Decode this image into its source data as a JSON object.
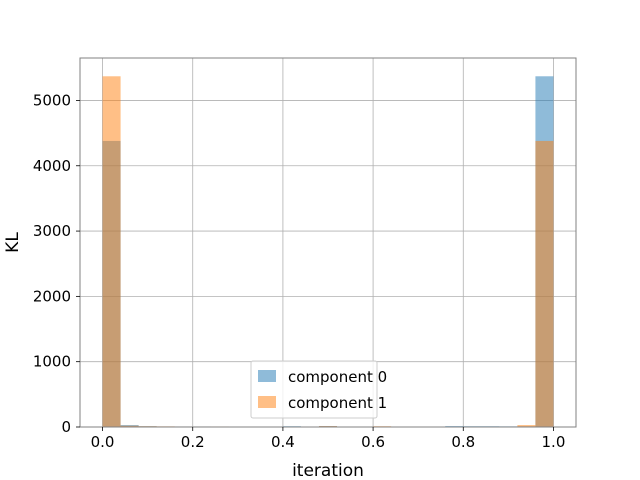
{
  "chart_data": {
    "type": "bar",
    "subtype": "overlaid-histogram",
    "xlabel": "iteration",
    "ylabel": "KL",
    "xlim": [
      -0.05,
      1.05
    ],
    "ylim": [
      0,
      5650
    ],
    "xticks": [
      0.0,
      0.2,
      0.4,
      0.6,
      0.8,
      1.0
    ],
    "xtick_labels": [
      "0.0",
      "0.2",
      "0.4",
      "0.6",
      "0.8",
      "1.0"
    ],
    "yticks": [
      0,
      1000,
      2000,
      3000,
      4000,
      5000
    ],
    "ytick_labels": [
      "0",
      "1000",
      "2000",
      "3000",
      "4000",
      "5000"
    ],
    "grid": true,
    "legend_position": "lower-center",
    "bin_edges": [
      0.0,
      0.04,
      0.08,
      0.12,
      0.16,
      0.2,
      0.24,
      0.28,
      0.32,
      0.36,
      0.4,
      0.44,
      0.48,
      0.52,
      0.56,
      0.6,
      0.64,
      0.68,
      0.72,
      0.76,
      0.8,
      0.84,
      0.88,
      0.92,
      0.96,
      1.0
    ],
    "series": [
      {
        "name": "component 0",
        "color": "#1f77b4",
        "alpha": 0.5,
        "values": [
          4380,
          30,
          12,
          8,
          8,
          8,
          6,
          0,
          0,
          0,
          12,
          0,
          14,
          0,
          0,
          0,
          0,
          0,
          0,
          14,
          12,
          12,
          10,
          10,
          5370
        ]
      },
      {
        "name": "component 1",
        "color": "#ff7f0e",
        "alpha": 0.5,
        "values": [
          5370,
          20,
          12,
          10,
          8,
          8,
          8,
          0,
          0,
          0,
          0,
          0,
          14,
          0,
          0,
          12,
          0,
          0,
          0,
          0,
          0,
          0,
          0,
          30,
          4380
        ]
      }
    ]
  }
}
